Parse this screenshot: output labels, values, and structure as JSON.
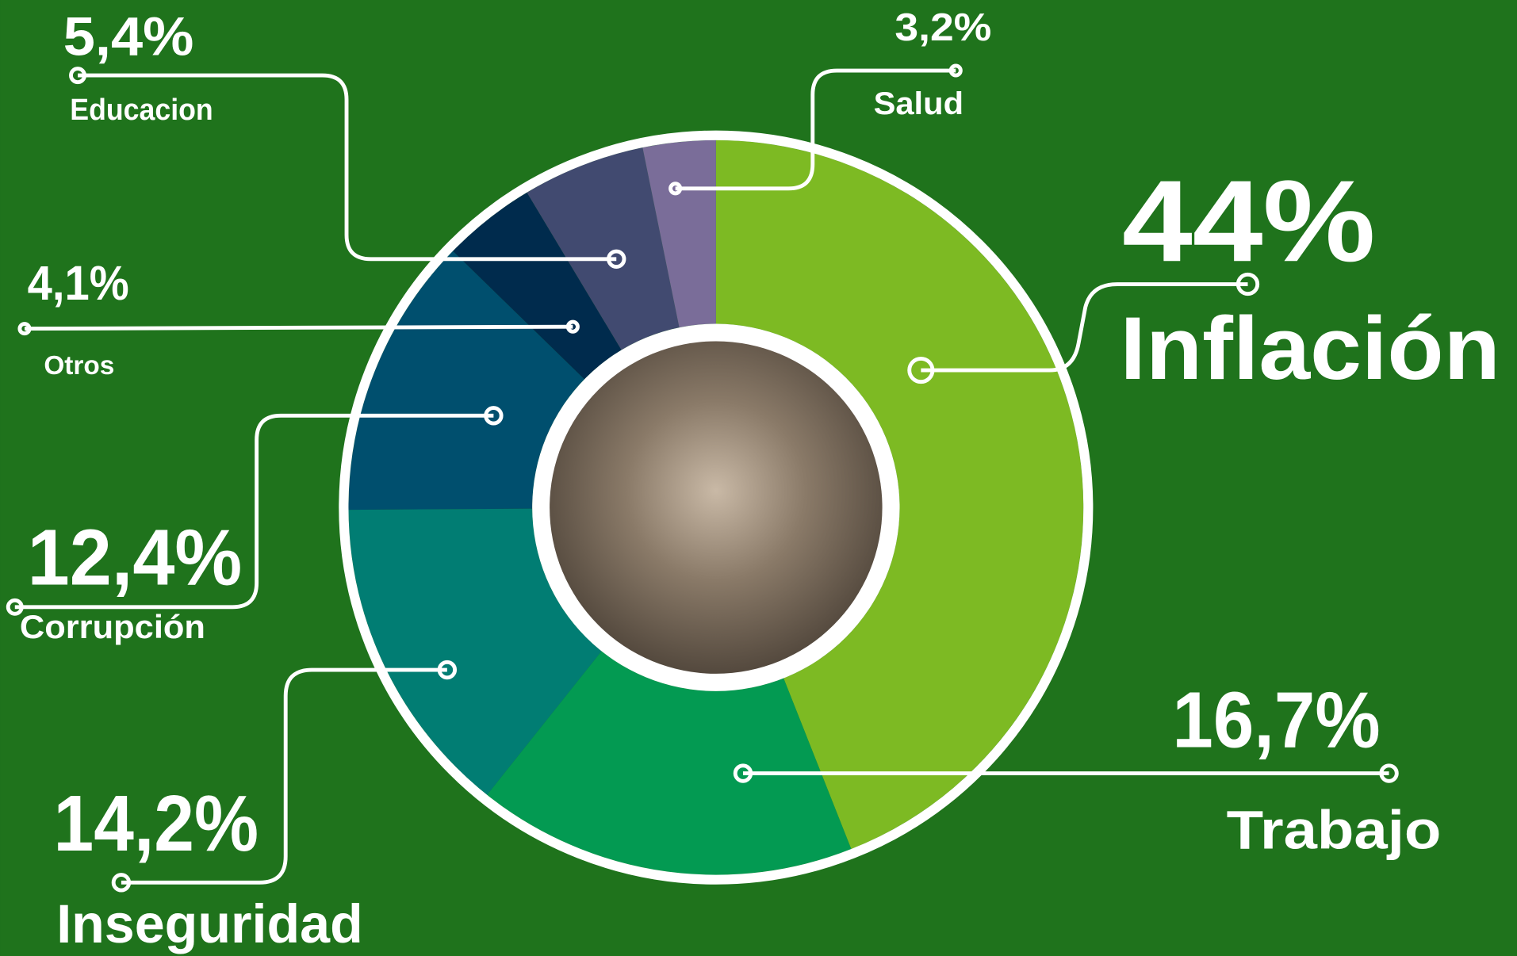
{
  "chart_data": {
    "type": "donut",
    "categories": [
      "Inflación",
      "Trabajo",
      "Inseguridad",
      "Corrupción",
      "Otros",
      "Educacion",
      "Salud"
    ],
    "values": [
      44,
      16.7,
      14.2,
      12.4,
      4.1,
      5.4,
      3.2
    ],
    "value_labels": [
      "44%",
      "16,7%",
      "14,2%",
      "12,4%",
      "4,1%",
      "5,4%",
      "3,2%"
    ],
    "colors": [
      "#7dba23",
      "#039a52",
      "#017d73",
      "#004f6e",
      "#002b4d",
      "#414a70",
      "#7a6d99"
    ]
  }
}
